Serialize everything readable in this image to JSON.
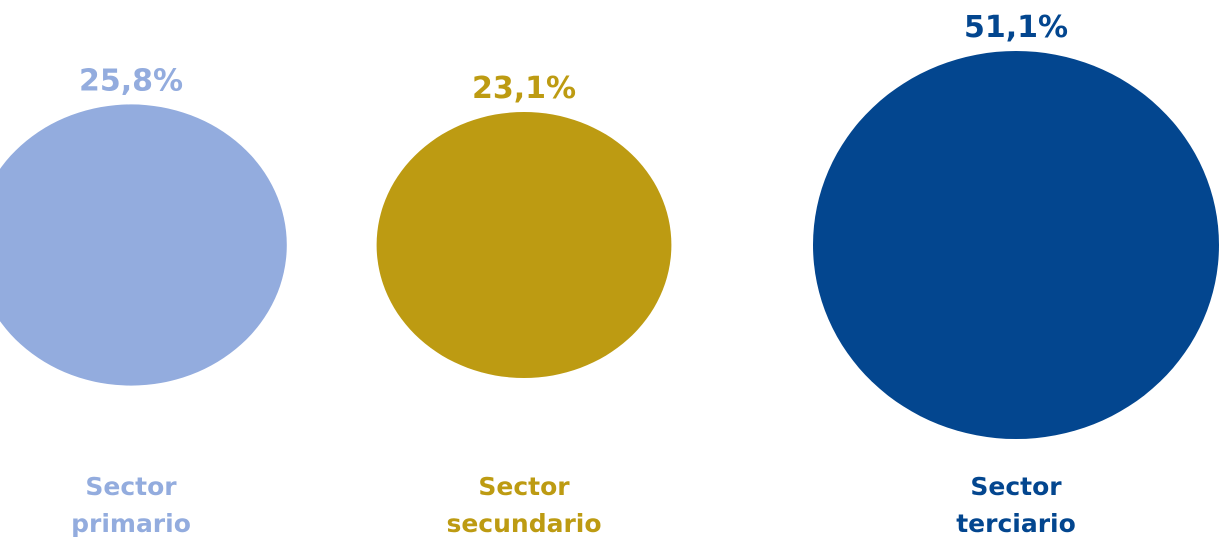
{
  "chart_data": {
    "type": "bubble",
    "title": "",
    "categories": [
      "Sector primario",
      "Sector secundario",
      "Sector terciario"
    ],
    "category_lines": [
      [
        "Sector",
        "primario"
      ],
      [
        "Sector",
        "secundario"
      ],
      [
        "Sector",
        "terciario"
      ]
    ],
    "values": [
      25.8,
      23.1,
      51.1
    ],
    "value_labels": [
      "25,8%",
      "23,1%",
      "51,1%"
    ],
    "unit": "%",
    "colors": [
      "#93acde",
      "#bd9b12",
      "#03468f"
    ],
    "legend": "none",
    "grid": false
  }
}
